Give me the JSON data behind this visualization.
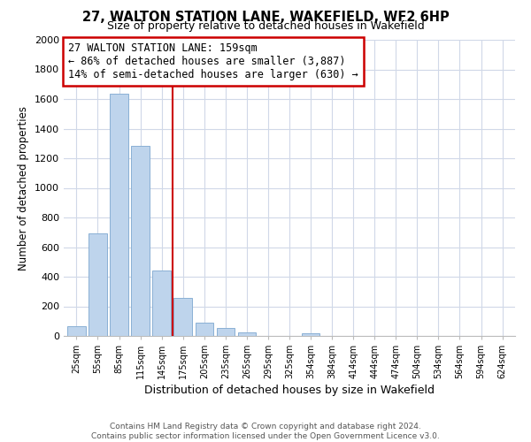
{
  "title": "27, WALTON STATION LANE, WAKEFIELD, WF2 6HP",
  "subtitle": "Size of property relative to detached houses in Wakefield",
  "xlabel": "Distribution of detached houses by size in Wakefield",
  "ylabel": "Number of detached properties",
  "bar_labels": [
    "25sqm",
    "55sqm",
    "85sqm",
    "115sqm",
    "145sqm",
    "175sqm",
    "205sqm",
    "235sqm",
    "265sqm",
    "295sqm",
    "325sqm",
    "354sqm",
    "384sqm",
    "414sqm",
    "444sqm",
    "474sqm",
    "504sqm",
    "534sqm",
    "564sqm",
    "594sqm",
    "624sqm"
  ],
  "bar_values": [
    65,
    695,
    1635,
    1285,
    440,
    255,
    90,
    52,
    25,
    0,
    0,
    15,
    0,
    0,
    0,
    0,
    0,
    0,
    0,
    0,
    0
  ],
  "bar_color": "#bed4ec",
  "bar_edge_color": "#8ab0d4",
  "vline_x": 4.5,
  "vline_color": "#cc0000",
  "annotation_line1": "27 WALTON STATION LANE: 159sqm",
  "annotation_line2": "← 86% of detached houses are smaller (3,887)",
  "annotation_line3": "14% of semi-detached houses are larger (630) →",
  "annotation_box_edgecolor": "#cc0000",
  "ylim": [
    0,
    2000
  ],
  "yticks": [
    0,
    200,
    400,
    600,
    800,
    1000,
    1200,
    1400,
    1600,
    1800,
    2000
  ],
  "footer_line1": "Contains HM Land Registry data © Crown copyright and database right 2024.",
  "footer_line2": "Contains public sector information licensed under the Open Government Licence v3.0.",
  "bg_color": "#ffffff",
  "grid_color": "#d0d8e8"
}
